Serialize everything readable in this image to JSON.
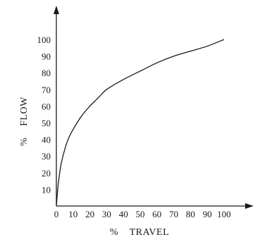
{
  "chart_data": {
    "type": "line",
    "title": "",
    "xlabel": "%    TRAVEL",
    "ylabel": "%    FLOW",
    "xlim": [
      0,
      100
    ],
    "ylim": [
      0,
      100
    ],
    "xticks": [
      0,
      10,
      20,
      30,
      40,
      50,
      60,
      70,
      80,
      90,
      100
    ],
    "yticks": [
      10,
      20,
      30,
      40,
      50,
      60,
      70,
      80,
      90,
      100
    ],
    "grid": false,
    "series": [
      {
        "x": [
          0,
          1,
          2,
          3,
          5,
          7,
          10,
          15,
          20,
          25,
          30,
          40,
          50,
          60,
          70,
          80,
          90,
          100
        ],
        "y": [
          0,
          12,
          20,
          26,
          34,
          40,
          46,
          54,
          60,
          65,
          70,
          76,
          81,
          86,
          90,
          93,
          96,
          100
        ]
      }
    ]
  }
}
